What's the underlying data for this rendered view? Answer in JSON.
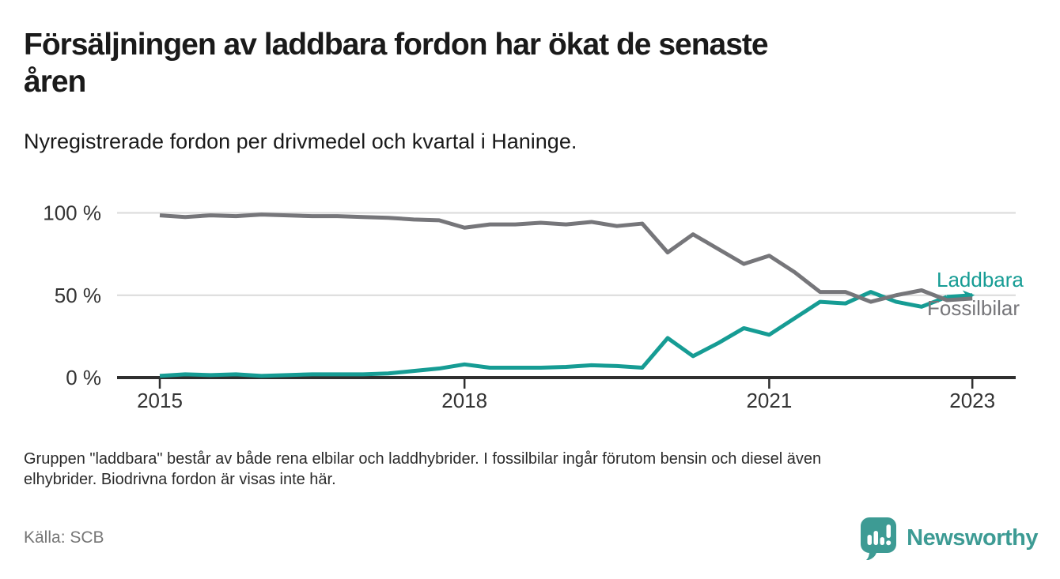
{
  "header": {
    "title_lines": [
      "Försäljningen av laddbara fordon har ökat de senaste",
      "åren"
    ],
    "title_full": "Försäljningen av laddbara fordon har ökat de senaste åren",
    "subtitle": "Nyregistrerade fordon per drivmedel och kvartal i Haninge."
  },
  "chart_data": {
    "type": "line",
    "unit": "%",
    "x_interval": "quarterly",
    "x_range": [
      "2015 Q1",
      "2023 Q1"
    ],
    "quarters": [
      "2015 Q1",
      "2015 Q2",
      "2015 Q3",
      "2015 Q4",
      "2016 Q1",
      "2016 Q2",
      "2016 Q3",
      "2016 Q4",
      "2017 Q1",
      "2017 Q2",
      "2017 Q3",
      "2017 Q4",
      "2018 Q1",
      "2018 Q2",
      "2018 Q3",
      "2018 Q4",
      "2019 Q1",
      "2019 Q2",
      "2019 Q3",
      "2019 Q4",
      "2020 Q1",
      "2020 Q2",
      "2020 Q3",
      "2020 Q4",
      "2021 Q1",
      "2021 Q2",
      "2021 Q3",
      "2021 Q4",
      "2022 Q1",
      "2022 Q2",
      "2022 Q3",
      "2022 Q4",
      "2023 Q1"
    ],
    "series": [
      {
        "name": "Laddbara",
        "color": "#169c94",
        "end_arrow": true,
        "values": [
          1,
          2,
          1.5,
          2,
          1,
          1.5,
          2,
          2,
          2,
          2.5,
          4,
          5.5,
          8,
          6,
          6,
          6,
          6.5,
          7.5,
          7,
          6,
          24,
          13,
          21,
          30,
          26,
          36,
          46,
          45,
          52,
          46,
          43,
          49,
          50
        ]
      },
      {
        "name": "Fossilbilar",
        "color": "#76767a",
        "end_arrow": false,
        "values": [
          98.5,
          97.5,
          98.5,
          98,
          99,
          98.5,
          98,
          98,
          97.5,
          97,
          96,
          95.5,
          91,
          93,
          93,
          94,
          93,
          94.5,
          92,
          93.5,
          76,
          87,
          78,
          69,
          74,
          64,
          52,
          52,
          46,
          50,
          53,
          47,
          48
        ]
      }
    ],
    "ylim": [
      0,
      100
    ],
    "yticks": [
      {
        "value": 100,
        "label": "100 %"
      },
      {
        "value": 50,
        "label": "50 %"
      },
      {
        "value": 0,
        "label": "0 %"
      }
    ],
    "xticks": [
      {
        "label": "2015",
        "q": 0
      },
      {
        "label": "2018",
        "q": 12
      },
      {
        "label": "2021",
        "q": 24
      },
      {
        "label": "2023",
        "q": 32
      }
    ],
    "grid": "horizontal-only",
    "legend_position": "end-of-line-labels-right"
  },
  "footnote": {
    "lines": [
      "Gruppen \"laddbara\" består av både rena elbilar och laddhybrider. I fossilbilar ingår förutom bensin och diesel även",
      "elhybrider. Biodrivna fordon är visas inte här."
    ],
    "text_full": "Gruppen \"laddbara\" består av både rena elbilar och laddhybrider. I fossilbilar ingår förutom bensin och diesel även elhybrider. Biodrivna fordon är visas inte här."
  },
  "source": {
    "label": "Källa: SCB"
  },
  "branding": {
    "name": "Newsworthy",
    "color": "#3d9b94"
  }
}
